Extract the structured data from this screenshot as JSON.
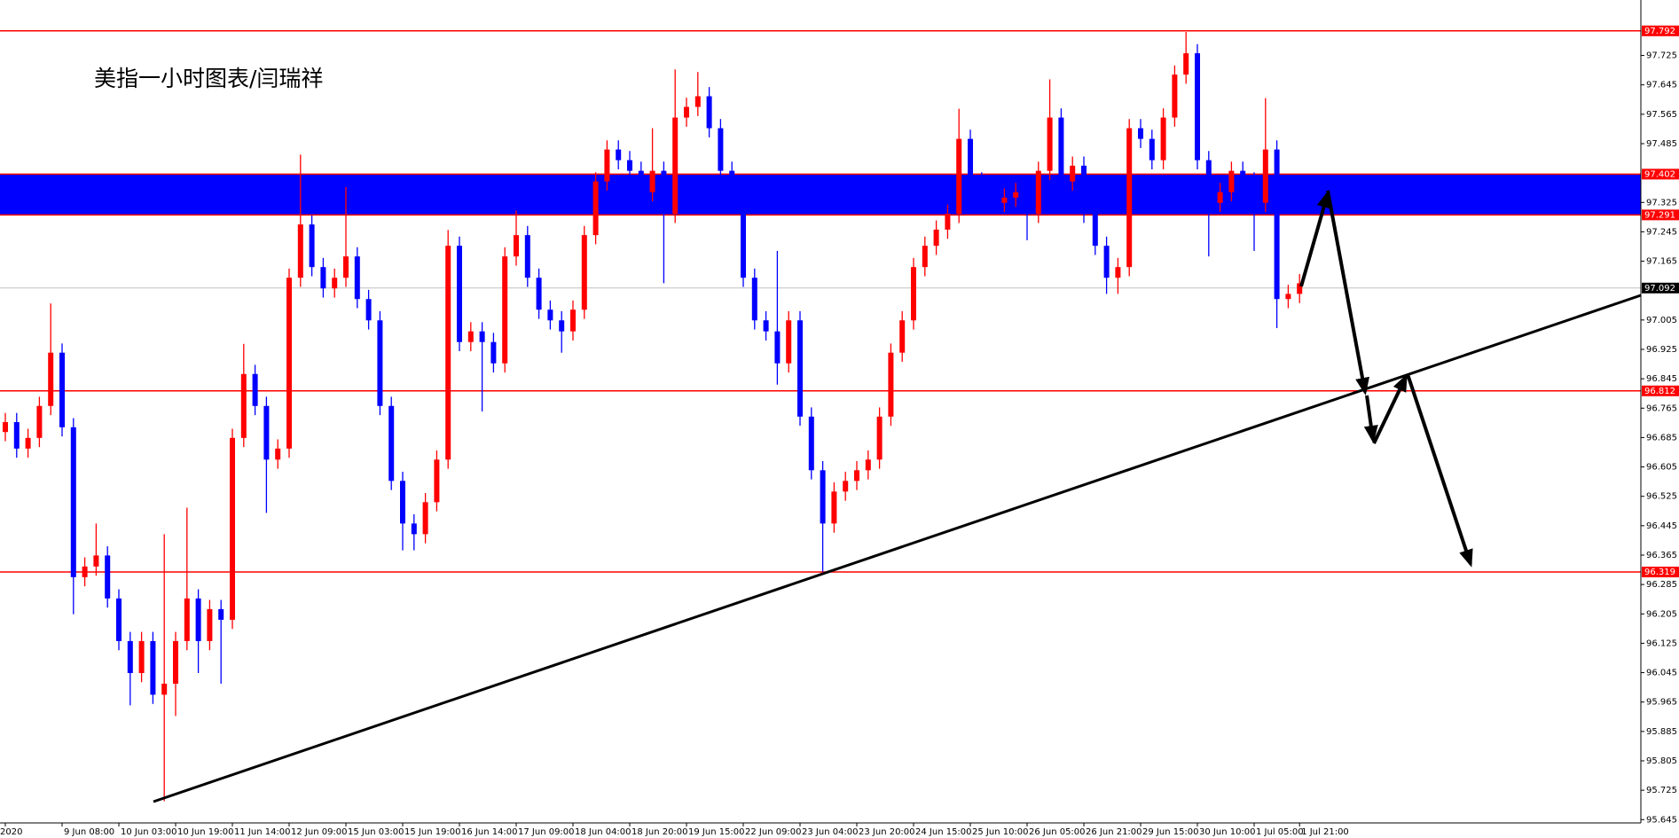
{
  "chart_data": {
    "type": "candlestick",
    "title": "美指一小时图表/闫瑞祥",
    "categories": [
      "2020",
      null,
      null,
      null,
      null,
      "9 Jun 08:00",
      null,
      null,
      null,
      null,
      "10 Jun 03:00",
      null,
      null,
      null,
      null,
      "10 Jun 19:00",
      null,
      null,
      null,
      null,
      "11 Jun 14:00",
      null,
      null,
      null,
      null,
      "12 Jun 09:00",
      null,
      null,
      null,
      null,
      "15 Jun 03:00",
      null,
      null,
      null,
      null,
      "15 Jun 19:00",
      null,
      null,
      null,
      null,
      "16 Jun 14:00",
      null,
      null,
      null,
      null,
      "17 Jun 09:00",
      null,
      null,
      null,
      null,
      "18 Jun 04:00",
      null,
      null,
      null,
      null,
      "18 Jun 20:00",
      null,
      null,
      null,
      null,
      "19 Jun 15:00",
      null,
      null,
      null,
      null,
      "22 Jun 09:00",
      null,
      null,
      null,
      null,
      "23 Jun 04:00",
      null,
      null,
      null,
      null,
      "23 Jun 20:00",
      null,
      null,
      null,
      null,
      "24 Jun 15:00",
      null,
      null,
      null,
      null,
      "25 Jun 10:00",
      null,
      null,
      null,
      null,
      "26 Jun 05:00",
      null,
      null,
      null,
      null,
      "26 Jun 21:00",
      null,
      null,
      null,
      null,
      "29 Jun 15:00",
      null,
      null,
      null,
      null,
      "30 Jun 10:00",
      null,
      null,
      null,
      null,
      "1 Jul 05:00",
      null,
      null,
      null,
      "1 Jul 21:00"
    ],
    "open": [
      96.7,
      96.727,
      96.655,
      96.684,
      96.771,
      96.916,
      96.713,
      96.305,
      96.334,
      96.364,
      96.247,
      96.131,
      96.044,
      96.131,
      95.985,
      96.015,
      96.131,
      96.247,
      96.131,
      96.218,
      96.189,
      96.684,
      96.858,
      96.771,
      96.625,
      96.655,
      97.12,
      97.265,
      97.149,
      97.091,
      97.12,
      97.178,
      97.062,
      97.004,
      96.771,
      96.567,
      96.451,
      96.422,
      96.509,
      96.625,
      97.207,
      96.945,
      96.974,
      96.945,
      96.887,
      97.178,
      97.236,
      97.12,
      97.033,
      97.004,
      96.974,
      97.033,
      97.236,
      97.382,
      97.469,
      97.44,
      97.411,
      97.353,
      97.411,
      97.294,
      97.556,
      97.585,
      97.614,
      97.527,
      97.411,
      97.353,
      97.12,
      97.004,
      96.974,
      96.887,
      97.004,
      96.742,
      96.596,
      96.451,
      96.538,
      96.567,
      96.596,
      96.625,
      96.742,
      96.916,
      97.004,
      97.149,
      97.207,
      97.251,
      97.294,
      97.498,
      97.382,
      97.338,
      97.324,
      97.338,
      97.353,
      97.294,
      97.411,
      97.556,
      97.382,
      97.425,
      97.294,
      97.207,
      97.12,
      97.149,
      97.527,
      97.498,
      97.44,
      97.556,
      97.673,
      97.731,
      97.44,
      97.324,
      97.353,
      97.411,
      97.382,
      97.324,
      97.469,
      97.062,
      97.076
    ],
    "high": [
      96.752,
      96.752,
      96.709,
      96.796,
      97.05,
      96.941,
      96.738,
      96.359,
      96.451,
      96.389,
      96.272,
      96.156,
      96.156,
      96.156,
      96.422,
      96.156,
      96.494,
      96.272,
      96.243,
      96.243,
      96.709,
      96.94,
      96.883,
      96.796,
      96.68,
      97.145,
      97.455,
      97.29,
      97.174,
      97.145,
      97.367,
      97.203,
      97.087,
      97.029,
      96.796,
      96.592,
      96.476,
      96.534,
      96.65,
      97.25,
      97.232,
      96.999,
      96.999,
      96.97,
      97.203,
      97.303,
      97.261,
      97.145,
      97.058,
      97.029,
      97.058,
      97.261,
      97.407,
      97.494,
      97.494,
      97.465,
      97.436,
      97.527,
      97.436,
      97.687,
      97.61,
      97.68,
      97.639,
      97.552,
      97.436,
      97.378,
      97.145,
      97.029,
      97.193,
      97.029,
      97.029,
      96.767,
      96.621,
      96.563,
      96.592,
      96.621,
      96.65,
      96.767,
      96.941,
      97.029,
      97.174,
      97.232,
      97.276,
      97.319,
      97.58,
      97.523,
      97.407,
      97.363,
      97.363,
      97.378,
      97.378,
      97.436,
      97.66,
      97.581,
      97.45,
      97.45,
      97.319,
      97.232,
      97.174,
      97.552,
      97.552,
      97.523,
      97.581,
      97.698,
      97.789,
      97.756,
      97.465,
      97.378,
      97.436,
      97.436,
      97.407,
      97.609,
      97.494,
      97.101,
      97.13
    ],
    "low": [
      96.675,
      96.63,
      96.63,
      96.659,
      96.746,
      96.688,
      96.204,
      96.28,
      96.309,
      96.222,
      96.106,
      95.956,
      96.019,
      95.96,
      95.695,
      95.927,
      96.106,
      96.044,
      96.106,
      96.015,
      96.164,
      96.659,
      96.746,
      96.48,
      96.6,
      96.63,
      97.095,
      97.124,
      97.066,
      97.066,
      97.095,
      97.037,
      96.979,
      96.746,
      96.542,
      96.378,
      96.378,
      96.397,
      96.484,
      96.6,
      96.92,
      96.92,
      96.756,
      96.862,
      96.862,
      97.153,
      97.095,
      97.008,
      96.979,
      96.916,
      96.949,
      97.008,
      97.211,
      97.357,
      97.415,
      97.386,
      97.328,
      97.328,
      97.105,
      97.269,
      97.531,
      97.56,
      97.502,
      97.386,
      97.328,
      97.095,
      96.979,
      96.949,
      96.829,
      96.862,
      96.717,
      96.571,
      96.32,
      96.426,
      96.513,
      96.542,
      96.571,
      96.6,
      96.717,
      96.891,
      96.979,
      97.124,
      97.182,
      97.226,
      97.269,
      97.357,
      97.313,
      97.299,
      97.299,
      97.313,
      97.222,
      97.269,
      97.386,
      97.357,
      97.357,
      97.269,
      97.182,
      97.076,
      97.076,
      97.124,
      97.473,
      97.415,
      97.415,
      97.531,
      97.648,
      97.415,
      97.178,
      97.299,
      97.328,
      97.357,
      97.193,
      97.299,
      96.983,
      97.037,
      97.051
    ],
    "close": [
      96.727,
      96.655,
      96.684,
      96.771,
      96.916,
      96.713,
      96.305,
      96.334,
      96.364,
      96.247,
      96.131,
      96.044,
      96.131,
      95.985,
      96.015,
      96.131,
      96.247,
      96.131,
      96.218,
      96.189,
      96.684,
      96.858,
      96.771,
      96.625,
      96.655,
      97.12,
      97.265,
      97.149,
      97.091,
      97.12,
      97.178,
      97.062,
      97.004,
      96.771,
      96.567,
      96.451,
      96.422,
      96.509,
      96.625,
      97.207,
      96.945,
      96.974,
      96.945,
      96.887,
      97.178,
      97.236,
      97.12,
      97.033,
      97.004,
      96.974,
      97.033,
      97.236,
      97.382,
      97.469,
      97.44,
      97.411,
      97.353,
      97.411,
      97.294,
      97.556,
      97.585,
      97.614,
      97.527,
      97.411,
      97.353,
      97.12,
      97.004,
      96.974,
      96.887,
      97.004,
      96.742,
      96.596,
      96.451,
      96.538,
      96.567,
      96.596,
      96.625,
      96.742,
      96.916,
      97.004,
      97.149,
      97.207,
      97.251,
      97.294,
      97.498,
      97.382,
      97.338,
      97.324,
      97.338,
      97.353,
      97.294,
      97.411,
      97.556,
      97.382,
      97.425,
      97.294,
      97.207,
      97.12,
      97.149,
      97.527,
      97.498,
      97.44,
      97.556,
      97.673,
      97.731,
      97.44,
      97.324,
      97.353,
      97.411,
      97.382,
      97.324,
      97.469,
      97.062,
      97.076,
      97.105
    ],
    "up_color": "#ff0000",
    "down_color": "#0000ff",
    "ylim": [
      95.636,
      97.876
    ],
    "yticks": [
      97.725,
      97.645,
      97.565,
      97.485,
      97.325,
      97.245,
      97.165,
      97.005,
      96.925,
      96.845,
      96.765,
      96.685,
      96.605,
      96.525,
      96.445,
      96.365,
      96.285,
      96.205,
      96.125,
      96.045,
      95.965,
      95.885,
      95.805,
      95.725,
      95.645
    ],
    "levels": [
      {
        "value": 97.792,
        "color": "#ff0000"
      },
      {
        "value": 96.812,
        "color": "#ff0000"
      },
      {
        "value": 96.319,
        "color": "#ff0000"
      }
    ],
    "zone": {
      "upper": 97.402,
      "lower": 97.291,
      "color": "#0000ff",
      "edge_color": "#ff0000"
    },
    "current_price": 97.092
  }
}
